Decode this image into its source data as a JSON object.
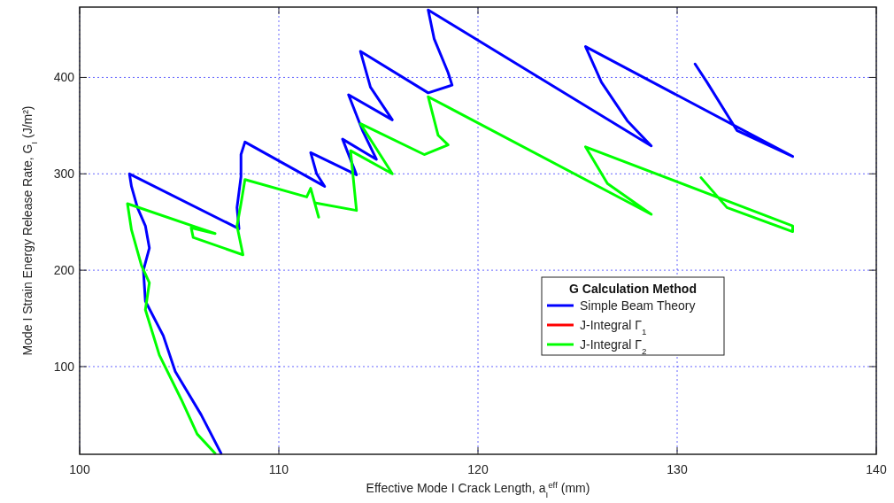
{
  "chart_data": {
    "type": "line",
    "xlabel": "Effective Mode I Crack Length, a$_{I}$$^{eff}$ (mm)",
    "ylabel": "Mode I Strain Energy Release Rate, G$_{I}$ (J/m²)",
    "legend_title": "G Calculation Method",
    "xlim": [
      100,
      140
    ],
    "xticks": [
      100,
      110,
      120,
      130,
      140
    ],
    "ylim": [
      9,
      473
    ],
    "yticks": [
      100,
      200,
      300,
      400
    ],
    "grid": true,
    "legend": "right",
    "marker": "none",
    "line_style": "solid",
    "series": [
      {
        "name": "Simple Beam Theory",
        "color": "#0000ff",
        "x": [
          107.1,
          106.1,
          104.8,
          104.2,
          103.3,
          103.2,
          103.5,
          103.3,
          102.9,
          102.6,
          102.5,
          108.0,
          107.9,
          108.1,
          108.1,
          108.3,
          112.3,
          111.9,
          111.6,
          113.9,
          113.2,
          114.9,
          114.2,
          113.5,
          115.7,
          114.6,
          114.1,
          117.5,
          118.7,
          118.5,
          117.8,
          117.5,
          128.7,
          127.5,
          126.2,
          125.4,
          135.8,
          133.0,
          131.5,
          130.9
        ],
        "values": [
          10,
          50,
          95,
          132,
          168,
          200,
          223,
          246,
          265,
          287,
          300,
          243,
          265,
          297,
          320,
          333,
          287,
          300,
          322,
          299,
          336,
          315,
          345,
          382,
          356,
          390,
          427,
          384,
          392,
          405,
          440,
          470,
          329,
          355,
          395,
          432,
          318,
          345,
          395,
          414
        ]
      },
      {
        "name": "J-Integral Γ$_{1}$",
        "color": "#ff0000"
      },
      {
        "name": "J-Integral Γ$_{2}$",
        "color": "#00ff00",
        "x": [
          106.8,
          105.9,
          105.1,
          104.0,
          103.3,
          103.5,
          103.1,
          102.6,
          102.4,
          106.8,
          105.6,
          105.7,
          108.2,
          107.9,
          108.1,
          108.3,
          111.4,
          111.6,
          112.0,
          111.8,
          113.9,
          113.6,
          115.7,
          114.1,
          117.3,
          118.5,
          118.0,
          117.5,
          128.7,
          126.5,
          125.4,
          135.8,
          135.8,
          132.5,
          131.2
        ],
        "values": [
          10,
          30,
          66,
          112,
          159,
          187,
          205,
          242,
          269,
          238,
          244,
          234,
          216,
          246,
          269,
          294,
          276,
          285,
          255,
          270,
          262,
          324,
          300,
          352,
          320,
          330,
          340,
          380,
          258,
          290,
          328,
          246,
          240,
          265,
          296
        ]
      }
    ]
  }
}
